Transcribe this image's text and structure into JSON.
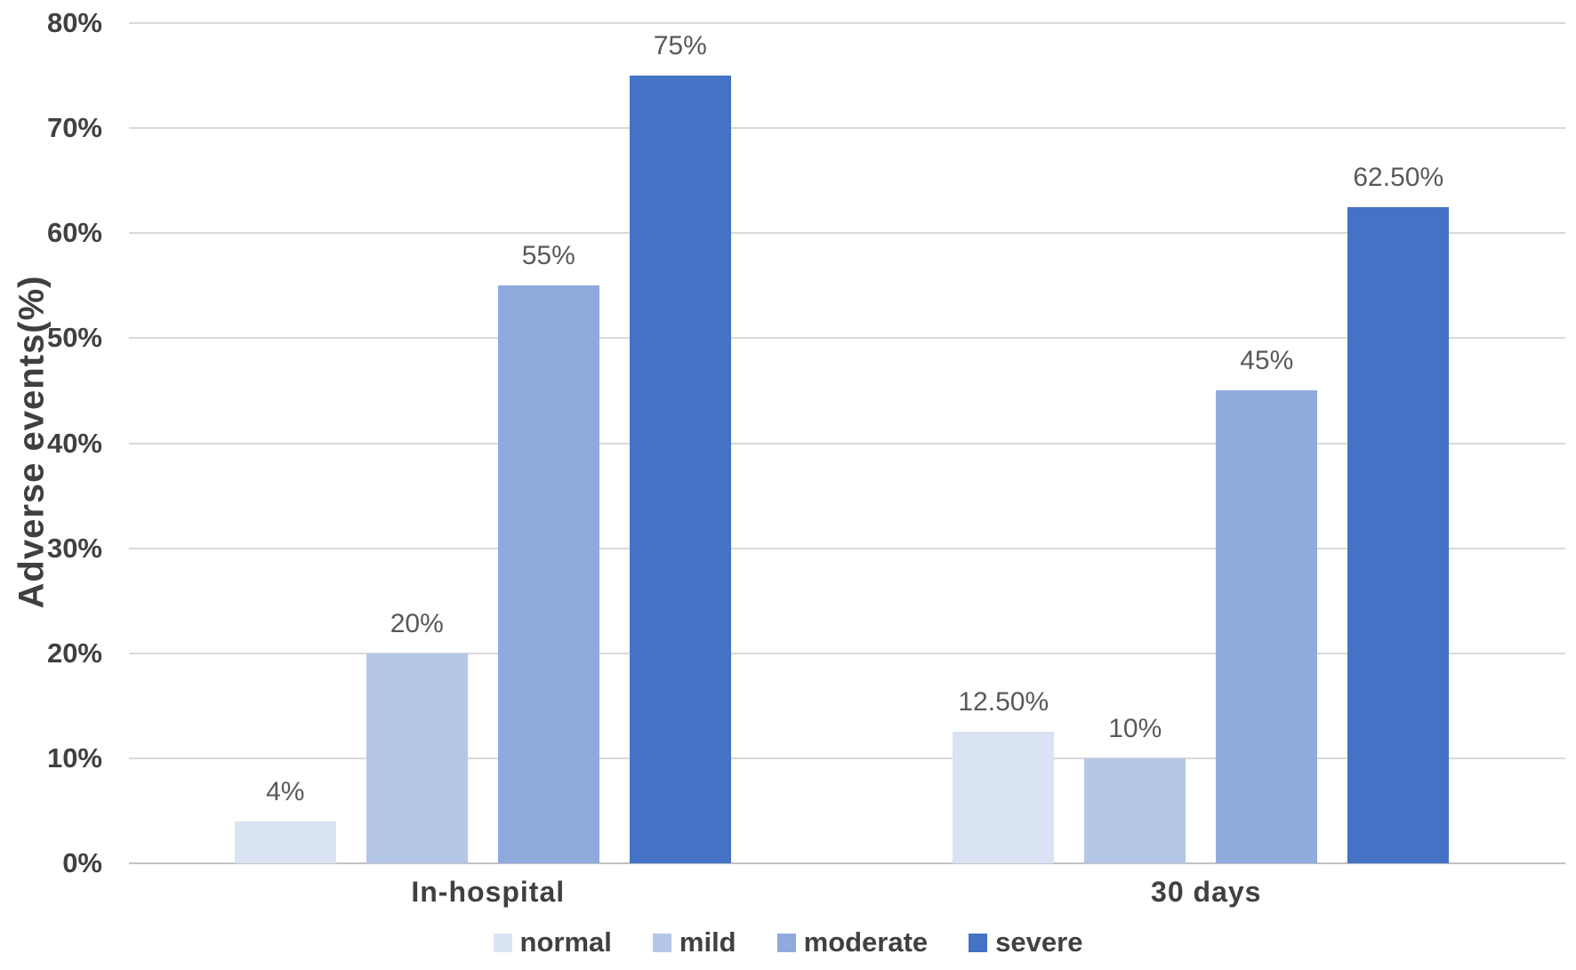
{
  "chart_data": {
    "type": "bar",
    "title": "",
    "xlabel": "",
    "ylabel": "Adverse events(%)",
    "categories": [
      "In-hospital",
      "30 days"
    ],
    "series": [
      {
        "name": "normal",
        "color": "#DAE3F3",
        "values": [
          4,
          12.5
        ],
        "labels": [
          "4%",
          "12.50%"
        ]
      },
      {
        "name": "mild",
        "color": "#B4C7E7",
        "values": [
          20,
          10
        ],
        "labels": [
          "20%",
          "10%"
        ]
      },
      {
        "name": "moderate",
        "color": "#8FAADC",
        "values": [
          55,
          45
        ],
        "labels": [
          "55%",
          "45%"
        ]
      },
      {
        "name": "severe",
        "color": "#4472C4",
        "values": [
          75,
          62.5
        ],
        "labels": [
          "75%",
          "62.50%"
        ]
      }
    ],
    "y_axis": {
      "min": 0,
      "max": 80,
      "step": 10,
      "tick_labels": [
        "0%",
        "10%",
        "20%",
        "30%",
        "40%",
        "50%",
        "60%",
        "70%",
        "80%"
      ]
    },
    "grid": true,
    "legend_position": "bottom"
  },
  "colors": {
    "gridline": "#D9D9D9",
    "axis_line": "#C3C3C3",
    "tick_text": "#404040",
    "value_text": "#595959"
  }
}
